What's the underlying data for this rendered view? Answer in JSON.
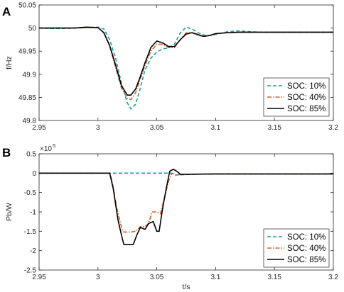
{
  "chart_data": [
    {
      "panel_label": "A",
      "type": "line",
      "xlabel": "",
      "ylabel": "f/Hz",
      "xlim": [
        2.95,
        3.2
      ],
      "ylim": [
        49.8,
        50.05
      ],
      "xticks": [
        2.95,
        3,
        3.05,
        3.1,
        3.15,
        3.2
      ],
      "yticks": [
        49.8,
        49.85,
        49.9,
        49.95,
        50,
        50.05
      ],
      "xtick_labels": [
        "2.95",
        "3",
        "3.05",
        "3.1",
        "3.15",
        "3.2"
      ],
      "ytick_labels": [
        "49.8",
        "49.85",
        "49.9",
        "49.95",
        "50",
        "50.05"
      ],
      "legend_position": "bottom-right",
      "series": [
        {
          "name": "SOC: 10%",
          "color": "#1f9aa6",
          "dash": "dashed",
          "points": [
            [
              2.95,
              50.0
            ],
            [
              2.96,
              49.999
            ],
            [
              2.97,
              49.999
            ],
            [
              2.98,
              50.0
            ],
            [
              2.99,
              50.001
            ],
            [
              3.0,
              50.002
            ],
            [
              3.005,
              49.998
            ],
            [
              3.01,
              49.975
            ],
            [
              3.015,
              49.935
            ],
            [
              3.02,
              49.88
            ],
            [
              3.025,
              49.838
            ],
            [
              3.028,
              49.825
            ],
            [
              3.032,
              49.835
            ],
            [
              3.036,
              49.87
            ],
            [
              3.04,
              49.91
            ],
            [
              3.045,
              49.935
            ],
            [
              3.05,
              49.948
            ],
            [
              3.055,
              49.955
            ],
            [
              3.06,
              49.957
            ],
            [
              3.065,
              49.965
            ],
            [
              3.07,
              49.99
            ],
            [
              3.075,
              50.002
            ],
            [
              3.08,
              49.998
            ],
            [
              3.085,
              49.99
            ],
            [
              3.09,
              49.985
            ],
            [
              3.095,
              49.984
            ],
            [
              3.1,
              49.986
            ],
            [
              3.11,
              49.992
            ],
            [
              3.12,
              49.994
            ],
            [
              3.13,
              49.992
            ],
            [
              3.14,
              49.991
            ],
            [
              3.15,
              49.991
            ],
            [
              3.16,
              49.991
            ],
            [
              3.18,
              49.991
            ],
            [
              3.2,
              49.991
            ]
          ]
        },
        {
          "name": "SOC: 40%",
          "color": "#d4622a",
          "dash": "dashdot",
          "points": [
            [
              2.95,
              50.0
            ],
            [
              2.96,
              50.0
            ],
            [
              2.97,
              50.0
            ],
            [
              2.98,
              50.0
            ],
            [
              2.99,
              50.001
            ],
            [
              3.0,
              50.001
            ],
            [
              3.005,
              49.99
            ],
            [
              3.01,
              49.96
            ],
            [
              3.015,
              49.915
            ],
            [
              3.02,
              49.87
            ],
            [
              3.025,
              49.848
            ],
            [
              3.028,
              49.845
            ],
            [
              3.032,
              49.86
            ],
            [
              3.036,
              49.89
            ],
            [
              3.04,
              49.92
            ],
            [
              3.045,
              49.95
            ],
            [
              3.05,
              49.965
            ],
            [
              3.055,
              49.965
            ],
            [
              3.06,
              49.958
            ],
            [
              3.065,
              49.958
            ],
            [
              3.07,
              49.975
            ],
            [
              3.075,
              49.99
            ],
            [
              3.08,
              49.99
            ],
            [
              3.085,
              49.984
            ],
            [
              3.09,
              49.982
            ],
            [
              3.095,
              49.984
            ],
            [
              3.1,
              49.988
            ],
            [
              3.11,
              49.99
            ],
            [
              3.12,
              49.991
            ],
            [
              3.14,
              49.991
            ],
            [
              3.16,
              49.991
            ],
            [
              3.18,
              49.991
            ],
            [
              3.2,
              49.991
            ]
          ]
        },
        {
          "name": "SOC: 85%",
          "color": "#000000",
          "dash": "solid",
          "points": [
            [
              2.95,
              50.0
            ],
            [
              2.96,
              50.0
            ],
            [
              2.97,
              50.0
            ],
            [
              2.98,
              50.0
            ],
            [
              2.99,
              50.002
            ],
            [
              3.0,
              50.001
            ],
            [
              3.005,
              49.99
            ],
            [
              3.01,
              49.962
            ],
            [
              3.015,
              49.92
            ],
            [
              3.02,
              49.875
            ],
            [
              3.025,
              49.855
            ],
            [
              3.028,
              49.855
            ],
            [
              3.032,
              49.868
            ],
            [
              3.036,
              49.895
            ],
            [
              3.04,
              49.925
            ],
            [
              3.045,
              49.958
            ],
            [
              3.05,
              49.972
            ],
            [
              3.055,
              49.968
            ],
            [
              3.06,
              49.96
            ],
            [
              3.065,
              49.96
            ],
            [
              3.07,
              49.975
            ],
            [
              3.075,
              49.987
            ],
            [
              3.08,
              49.99
            ],
            [
              3.085,
              49.986
            ],
            [
              3.09,
              49.982
            ],
            [
              3.095,
              49.984
            ],
            [
              3.1,
              49.988
            ],
            [
              3.11,
              49.99
            ],
            [
              3.12,
              49.991
            ],
            [
              3.14,
              49.991
            ],
            [
              3.16,
              49.991
            ],
            [
              3.18,
              49.991
            ],
            [
              3.2,
              49.991
            ]
          ]
        }
      ]
    },
    {
      "panel_label": "B",
      "type": "line",
      "xlabel": "t/s",
      "ylabel": "Pb/W",
      "y_multiplier_base": "×10",
      "y_multiplier_exponent": "5",
      "xlim": [
        2.95,
        3.2
      ],
      "ylim": [
        -2.5,
        0.5
      ],
      "xticks": [
        2.95,
        3,
        3.05,
        3.1,
        3.15,
        3.2
      ],
      "yticks": [
        -2.5,
        -2,
        -1.5,
        -1,
        -0.5,
        0,
        0.5
      ],
      "xtick_labels": [
        "2.95",
        "3",
        "3.05",
        "3.1",
        "3.15",
        "3.2"
      ],
      "ytick_labels": [
        "-2.5",
        "-2",
        "-1.5",
        "-1",
        "-0.5",
        "0",
        "0.5"
      ],
      "legend_position": "bottom-right",
      "series": [
        {
          "name": "SOC: 10%",
          "color": "#1f9aa6",
          "dash": "dashed",
          "points": [
            [
              2.95,
              0
            ],
            [
              3.0,
              0
            ],
            [
              3.05,
              0
            ],
            [
              3.063,
              0
            ],
            [
              3.066,
              -0.05
            ],
            [
              3.08,
              -0.03
            ],
            [
              3.1,
              -0.02
            ],
            [
              3.15,
              -0.02
            ],
            [
              3.2,
              -0.02
            ]
          ]
        },
        {
          "name": "SOC: 40%",
          "color": "#d4622a",
          "dash": "dashdot",
          "points": [
            [
              2.95,
              0
            ],
            [
              3.01,
              0
            ],
            [
              3.012,
              -0.2
            ],
            [
              3.016,
              -0.9
            ],
            [
              3.02,
              -1.4
            ],
            [
              3.022,
              -1.52
            ],
            [
              3.028,
              -1.52
            ],
            [
              3.032,
              -1.5
            ],
            [
              3.036,
              -1.38
            ],
            [
              3.04,
              -1.38
            ],
            [
              3.043,
              -1.3
            ],
            [
              3.046,
              -1.0
            ],
            [
              3.05,
              -1.0
            ],
            [
              3.053,
              -1.05
            ],
            [
              3.056,
              -0.7
            ],
            [
              3.06,
              -0.2
            ],
            [
              3.063,
              0
            ],
            [
              3.066,
              -0.04
            ],
            [
              3.08,
              -0.03
            ],
            [
              3.1,
              -0.02
            ],
            [
              3.15,
              -0.02
            ],
            [
              3.2,
              -0.02
            ]
          ]
        },
        {
          "name": "SOC: 85%",
          "color": "#000000",
          "dash": "solid",
          "points": [
            [
              2.95,
              0
            ],
            [
              3.01,
              0
            ],
            [
              3.013,
              -0.4
            ],
            [
              3.017,
              -1.2
            ],
            [
              3.02,
              -1.6
            ],
            [
              3.022,
              -1.84
            ],
            [
              3.03,
              -1.84
            ],
            [
              3.033,
              -1.6
            ],
            [
              3.036,
              -1.4
            ],
            [
              3.04,
              -1.45
            ],
            [
              3.043,
              -1.3
            ],
            [
              3.047,
              -1.25
            ],
            [
              3.05,
              -1.5
            ],
            [
              3.052,
              -1.5
            ],
            [
              3.055,
              -0.9
            ],
            [
              3.058,
              -0.4
            ],
            [
              3.061,
              0.05
            ],
            [
              3.064,
              0.1
            ],
            [
              3.067,
              0.05
            ],
            [
              3.07,
              -0.03
            ],
            [
              3.1,
              -0.02
            ],
            [
              3.15,
              -0.02
            ],
            [
              3.2,
              -0.02
            ]
          ]
        }
      ]
    }
  ]
}
